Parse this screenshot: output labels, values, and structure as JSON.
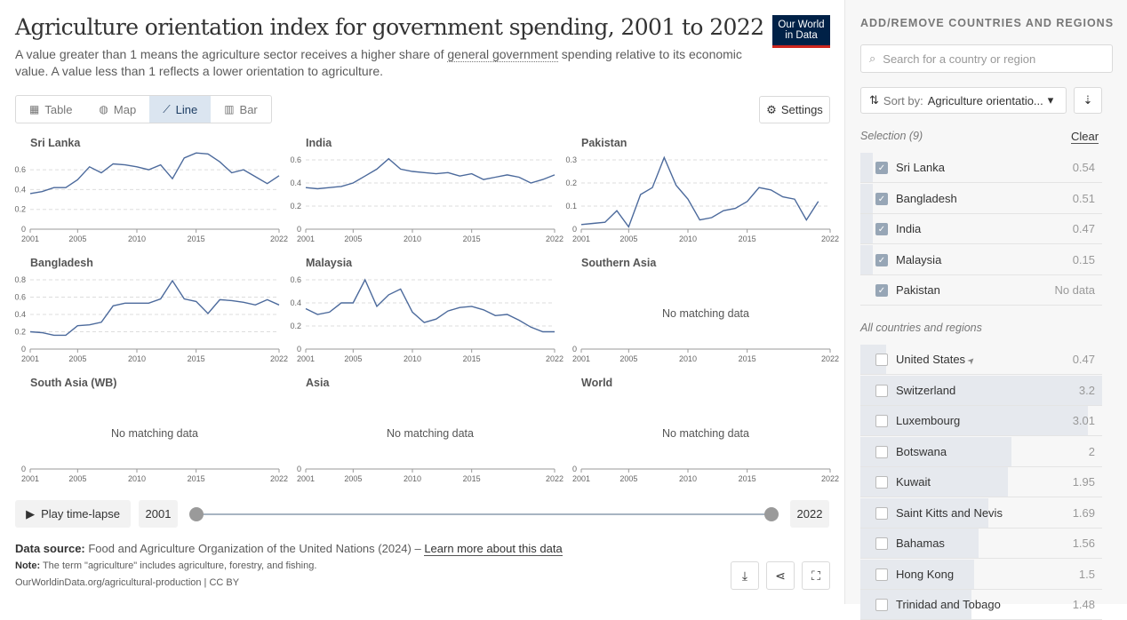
{
  "header": {
    "title": "Agriculture orientation index for government spending, 2001 to 2022",
    "subtitle_before": "A value greater than 1 means the agriculture sector receives a higher share of ",
    "subtitle_link": "general government",
    "subtitle_after": " spending relative to its economic value. A value less than 1 reflects a lower orientation to agriculture.",
    "logo_line1": "Our World",
    "logo_line2": "in Data"
  },
  "tabs": [
    {
      "label": "Table",
      "icon": "table-icon"
    },
    {
      "label": "Map",
      "icon": "globe-icon"
    },
    {
      "label": "Line",
      "icon": "line-chart-icon"
    },
    {
      "label": "Bar",
      "icon": "bar-chart-icon"
    }
  ],
  "active_tab": "Line",
  "settings_label": "Settings",
  "no_data_label": "No matching data",
  "chart_data": [
    {
      "type": "line",
      "title": "Sri Lanka",
      "x": [
        2001,
        2002,
        2003,
        2004,
        2005,
        2006,
        2007,
        2008,
        2009,
        2010,
        2011,
        2012,
        2013,
        2014,
        2015,
        2016,
        2017,
        2018,
        2019,
        2020,
        2021,
        2022
      ],
      "y": [
        0.36,
        0.38,
        0.42,
        0.42,
        0.5,
        0.63,
        0.57,
        0.66,
        0.65,
        0.63,
        0.6,
        0.65,
        0.51,
        0.72,
        0.77,
        0.76,
        0.68,
        0.57,
        0.6,
        0.53,
        0.46,
        0.54
      ],
      "ylim": [
        0,
        0.7
      ],
      "yticks": [
        0,
        0.2,
        0.4,
        0.6
      ],
      "xticks": [
        2001,
        2005,
        2010,
        2015,
        2022
      ],
      "color": "#4c6a9c"
    },
    {
      "type": "line",
      "title": "India",
      "x": [
        2001,
        2002,
        2003,
        2004,
        2005,
        2006,
        2007,
        2008,
        2009,
        2010,
        2011,
        2012,
        2013,
        2014,
        2015,
        2016,
        2017,
        2018,
        2019,
        2020,
        2021,
        2022
      ],
      "y": [
        0.36,
        0.35,
        0.36,
        0.37,
        0.4,
        0.46,
        0.52,
        0.61,
        0.52,
        0.5,
        0.49,
        0.48,
        0.49,
        0.46,
        0.48,
        0.43,
        0.45,
        0.47,
        0.45,
        0.4,
        0.43,
        0.47
      ],
      "ylim": [
        0,
        0.6
      ],
      "yticks": [
        0,
        0.2,
        0.4,
        0.6
      ],
      "xticks": [
        2001,
        2005,
        2010,
        2015,
        2022
      ],
      "color": "#4c6a9c"
    },
    {
      "type": "line",
      "title": "Pakistan",
      "x": [
        2001,
        2002,
        2003,
        2004,
        2005,
        2006,
        2007,
        2008,
        2009,
        2010,
        2011,
        2012,
        2013,
        2014,
        2015,
        2016,
        2017,
        2018,
        2019,
        2020,
        2021,
        2022
      ],
      "y": [
        0.02,
        0.025,
        0.03,
        0.08,
        0.01,
        0.15,
        0.18,
        0.31,
        0.19,
        0.13,
        0.04,
        0.05,
        0.08,
        0.09,
        0.12,
        0.18,
        0.17,
        0.14,
        0.13,
        0.04,
        0.12,
        null
      ],
      "ylim": [
        0,
        0.3
      ],
      "yticks": [
        0,
        0.1,
        0.2,
        0.3
      ],
      "xticks": [
        2001,
        2005,
        2010,
        2015,
        2022
      ],
      "color": "#4c6a9c"
    },
    {
      "type": "line",
      "title": "Bangladesh",
      "x": [
        2001,
        2002,
        2003,
        2004,
        2005,
        2006,
        2007,
        2008,
        2009,
        2010,
        2011,
        2012,
        2013,
        2014,
        2015,
        2016,
        2017,
        2018,
        2019,
        2020,
        2021,
        2022
      ],
      "y": [
        0.2,
        0.19,
        0.16,
        0.16,
        0.27,
        0.28,
        0.31,
        0.5,
        0.53,
        0.53,
        0.53,
        0.58,
        0.79,
        0.58,
        0.55,
        0.41,
        0.57,
        0.56,
        0.54,
        0.51,
        0.57,
        0.51
      ],
      "ylim": [
        0,
        0.8
      ],
      "yticks": [
        0,
        0.2,
        0.4,
        0.6,
        0.8
      ],
      "xticks": [
        2001,
        2005,
        2010,
        2015,
        2022
      ],
      "color": "#4c6a9c"
    },
    {
      "type": "line",
      "title": "Malaysia",
      "x": [
        2001,
        2002,
        2003,
        2004,
        2005,
        2006,
        2007,
        2008,
        2009,
        2010,
        2011,
        2012,
        2013,
        2014,
        2015,
        2016,
        2017,
        2018,
        2019,
        2020,
        2021,
        2022
      ],
      "y": [
        0.35,
        0.3,
        0.32,
        0.4,
        0.4,
        0.6,
        0.37,
        0.47,
        0.52,
        0.32,
        0.23,
        0.26,
        0.33,
        0.36,
        0.37,
        0.34,
        0.29,
        0.3,
        0.25,
        0.19,
        0.15,
        0.15
      ],
      "ylim": [
        0,
        0.6
      ],
      "yticks": [
        0,
        0.2,
        0.4,
        0.6
      ],
      "xticks": [
        2001,
        2005,
        2010,
        2015,
        2022
      ],
      "color": "#4c6a9c"
    },
    {
      "type": "line",
      "title": "Southern Asia",
      "x": [],
      "y": [],
      "no_data": true,
      "yticks": [
        0
      ],
      "xticks": [
        2001,
        2005,
        2010,
        2015,
        2022
      ]
    },
    {
      "type": "line",
      "title": "South Asia (WB)",
      "x": [],
      "y": [],
      "no_data": true,
      "yticks": [
        0
      ],
      "xticks": [
        2001,
        2005,
        2010,
        2015,
        2022
      ]
    },
    {
      "type": "line",
      "title": "Asia",
      "x": [],
      "y": [],
      "no_data": true,
      "yticks": [
        0
      ],
      "xticks": [
        2001,
        2005,
        2010,
        2015,
        2022
      ]
    },
    {
      "type": "line",
      "title": "World",
      "x": [],
      "y": [],
      "no_data": true,
      "yticks": [
        0
      ],
      "xticks": [
        2001,
        2005,
        2010,
        2015,
        2022
      ]
    }
  ],
  "timeline": {
    "play_label": "Play time-lapse",
    "start": "2001",
    "end": "2022"
  },
  "footer": {
    "source_label": "Data source:",
    "source_text": " Food and Agriculture Organization of the United Nations (2024) – ",
    "learn_more": "Learn more about this data",
    "note_label": "Note:",
    "note_text": " The term \"agriculture\" includes agriculture, forestry, and fishing.",
    "credit": "OurWorldinData.org/agricultural-production | CC BY"
  },
  "sidebar": {
    "title": "ADD/REMOVE COUNTRIES AND REGIONS",
    "search_placeholder": "Search for a country or region",
    "sort_label": "Sort by:",
    "sort_value": "Agriculture orientatio...",
    "selection_label": "Selection (9)",
    "clear_label": "Clear",
    "all_label": "All countries and regions",
    "selected": [
      {
        "name": "Sri Lanka",
        "value": "0.54",
        "share": 0.0525
      },
      {
        "name": "Bangladesh",
        "value": "0.51",
        "share": 0.0525
      },
      {
        "name": "India",
        "value": "0.47",
        "share": 0.052
      },
      {
        "name": "Malaysia",
        "value": "0.15",
        "share": 0.052
      },
      {
        "name": "Pakistan",
        "value": "No data",
        "share": 0
      }
    ],
    "all": [
      {
        "name": "United States",
        "value": "0.47",
        "share": 0.105,
        "pin": true
      },
      {
        "name": "Switzerland",
        "value": "3.2",
        "share": 1.0
      },
      {
        "name": "Luxembourg",
        "value": "3.01",
        "share": 0.94
      },
      {
        "name": "Botswana",
        "value": "2",
        "share": 0.625
      },
      {
        "name": "Kuwait",
        "value": "1.95",
        "share": 0.609
      },
      {
        "name": "Saint Kitts and Nevis",
        "value": "1.69",
        "share": 0.528
      },
      {
        "name": "Bahamas",
        "value": "1.56",
        "share": 0.488
      },
      {
        "name": "Hong Kong",
        "value": "1.5",
        "share": 0.469
      },
      {
        "name": "Trinidad and Tobago",
        "value": "1.48",
        "share": 0.46
      }
    ]
  }
}
